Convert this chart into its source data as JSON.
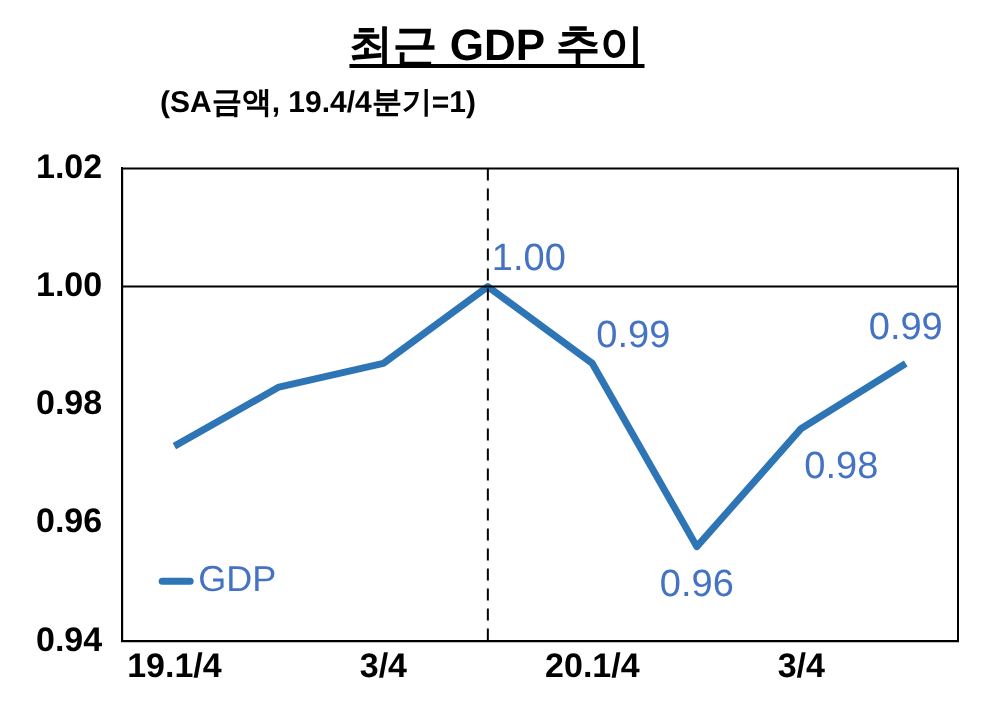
{
  "chart_data": {
    "type": "line",
    "title": "최근 GDP 추이",
    "subtitle": "(SA금액, 19.4/4분기=1)",
    "categories": [
      "19.1/4",
      null,
      "3/4",
      null,
      "20.1/4",
      null,
      "3/4",
      null
    ],
    "series": [
      {
        "name": "GDP",
        "color": "#2e75b6",
        "values": [
          0.973,
          0.983,
          0.987,
          1.0,
          0.987,
          0.956,
          0.976,
          0.987
        ],
        "value_labels": [
          null,
          null,
          null,
          "1.00",
          "0.99",
          "0.96",
          "0.98",
          "0.99"
        ]
      }
    ],
    "ylim": [
      0.94,
      1.02
    ],
    "yticks": [
      0.94,
      0.96,
      0.98,
      {
        "value": 1.0,
        "label": "1.00"
      },
      1.02
    ],
    "ref_lines": [
      {
        "axis": "y",
        "value": 1.0,
        "color": "#000000",
        "line_style": "solid"
      }
    ],
    "grid": false,
    "legend": "bottom left",
    "marker": "none",
    "line_style": "solid"
  }
}
